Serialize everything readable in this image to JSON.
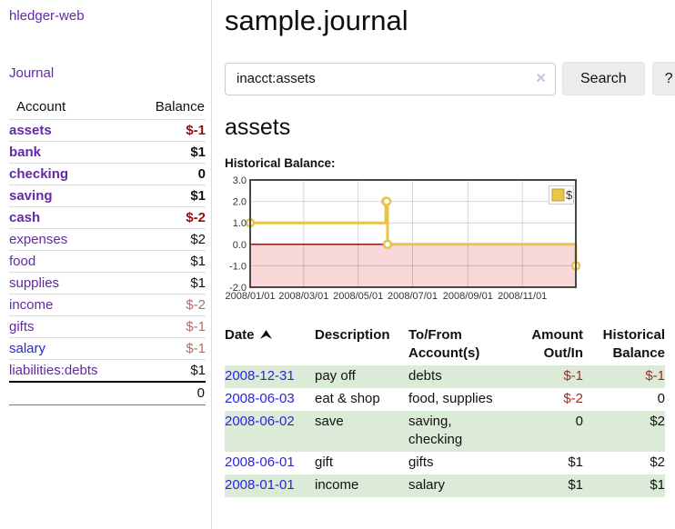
{
  "colors": {
    "link_purple": "#6428a8",
    "link_blue": "#2727d8",
    "neg_strong": "#8e1414",
    "neg_soft": "#b26b6b",
    "neg": "#9e2b2b",
    "row_green": "#dcead8",
    "button_bg": "#ececec",
    "chart_gold": "#e8c34a",
    "chart_negative_region": "#f8d8d8",
    "chart_zero_line": "#8b0000"
  },
  "app": {
    "brand": "hledger-web",
    "nav_journal": "Journal"
  },
  "sidebar": {
    "accounts_header": {
      "account": "Account",
      "balance": "Balance"
    },
    "accounts": [
      {
        "name": "assets",
        "indent": 0,
        "bold": true,
        "balance": "$-1",
        "balance_style": "neg-strong"
      },
      {
        "name": "bank",
        "indent": 1,
        "bold": true,
        "balance": "$1",
        "balance_style": "pos"
      },
      {
        "name": "checking",
        "indent": 2,
        "bold": true,
        "balance": "0",
        "balance_style": "pos"
      },
      {
        "name": "saving",
        "indent": 2,
        "bold": true,
        "balance": "$1",
        "balance_style": "pos"
      },
      {
        "name": "cash",
        "indent": 1,
        "bold": true,
        "balance": "$-2",
        "balance_style": "neg-strong"
      },
      {
        "name": "expenses",
        "indent": 0,
        "bold": false,
        "balance": "$2",
        "balance_style": "pos"
      },
      {
        "name": "food",
        "indent": 1,
        "bold": false,
        "balance": "$1",
        "balance_style": "pos"
      },
      {
        "name": "supplies",
        "indent": 1,
        "bold": false,
        "balance": "$1",
        "balance_style": "pos"
      },
      {
        "name": "income",
        "indent": 0,
        "bold": false,
        "balance": "$-2",
        "balance_style": "neg-soft"
      },
      {
        "name": "gifts",
        "indent": 1,
        "bold": false,
        "balance": "$-1",
        "balance_style": "neg-soft"
      },
      {
        "name": "salary",
        "indent": 1,
        "bold": false,
        "balance": "$-1",
        "balance_style": "neg-soft",
        "link_style": "blue"
      },
      {
        "name": "liabilities:debts",
        "indent": 0,
        "bold": false,
        "balance": "$1",
        "balance_style": "pos"
      }
    ],
    "total": "0"
  },
  "header": {
    "title": "sample.journal"
  },
  "search": {
    "value": "inacct:assets",
    "clear_icon": "✕",
    "button": "Search",
    "help_button": "?"
  },
  "account_page": {
    "title": "assets",
    "chart_label": "Historical Balance:"
  },
  "chart_data": {
    "type": "line",
    "step": true,
    "grid": true,
    "title": "Historical Balance",
    "series": [
      {
        "name": "$",
        "color": "#e8c34a",
        "points": [
          {
            "date": "2008-01-01",
            "value": 1
          },
          {
            "date": "2008-06-01",
            "value": 2
          },
          {
            "date": "2008-06-02",
            "value": 2
          },
          {
            "date": "2008-06-03",
            "value": 0
          },
          {
            "date": "2008-12-31",
            "value": -1
          }
        ]
      }
    ],
    "x_range": [
      "2008-01-01",
      "2008-12-31"
    ],
    "x_tick_dates": [
      "2008-01-01",
      "2008-03-01",
      "2008-05-01",
      "2008-07-01",
      "2008-09-01",
      "2008-11-01"
    ],
    "x_tick_labels": [
      "2008/01/01",
      "2008/03/01",
      "2008/05/01",
      "2008/07/01",
      "2008/09/01",
      "2008/11/01"
    ],
    "ylim": [
      -2,
      3
    ],
    "y_tick_labels": [
      "-2.0",
      "-1.0",
      "0.0",
      "1.0",
      "2.0",
      "3.0"
    ],
    "negative_region_color": "#f8d8d8",
    "zero_line_color": "#8b0000",
    "legend": {
      "label": "$",
      "swatch_color": "#e9c646",
      "position": "top-right"
    }
  },
  "register": {
    "headers": {
      "date": "Date",
      "description": "Description",
      "accounts": "To/From Account(s)",
      "amount": "Amount Out/In",
      "balance": "Historical Balance"
    },
    "sort": {
      "column": "date",
      "direction": "ascending"
    },
    "rows": [
      {
        "date": "2008-12-31",
        "description": "pay off",
        "accounts": "debts",
        "amount": "$-1",
        "amount_style": "neg",
        "balance": "$-1",
        "balance_style": "neg"
      },
      {
        "date": "2008-06-03",
        "description": "eat & shop",
        "accounts": "food, supplies",
        "amount": "$-2",
        "amount_style": "neg",
        "balance": "0",
        "balance_style": "pos"
      },
      {
        "date": "2008-06-02",
        "description": "save",
        "accounts": "saving, checking",
        "amount": "0",
        "amount_style": "pos",
        "balance": "$2",
        "balance_style": "pos"
      },
      {
        "date": "2008-06-01",
        "description": "gift",
        "accounts": "gifts",
        "amount": "$1",
        "amount_style": "pos",
        "balance": "$2",
        "balance_style": "pos"
      },
      {
        "date": "2008-01-01",
        "description": "income",
        "accounts": "salary",
        "amount": "$1",
        "amount_style": "pos",
        "balance": "$1",
        "balance_style": "pos"
      }
    ]
  }
}
